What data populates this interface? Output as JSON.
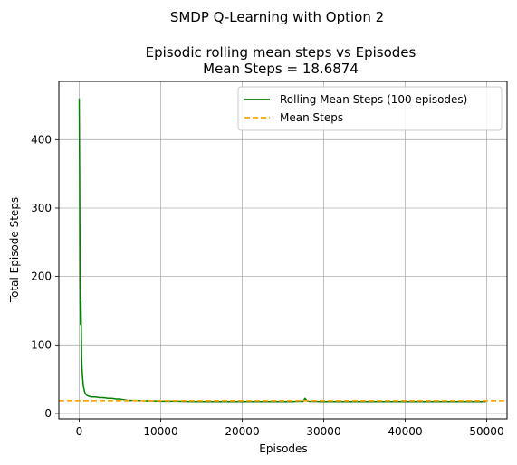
{
  "chart_data": {
    "type": "line",
    "suptitle": "SMDP Q-Learning with Option 2",
    "title": "Episodic rolling mean steps vs Episodes",
    "subtitle": "Mean Steps = 18.6874",
    "xlabel": "Episodes",
    "ylabel": "Total Episode Steps",
    "xlim": [
      -2500,
      52500
    ],
    "ylim": [
      -8,
      485
    ],
    "xticks": [
      0,
      10000,
      20000,
      30000,
      40000,
      50000
    ],
    "xtick_labels": [
      "0",
      "10000",
      "20000",
      "30000",
      "40000",
      "50000"
    ],
    "yticks": [
      0,
      100,
      200,
      300,
      400
    ],
    "ytick_labels": [
      "0",
      "100",
      "200",
      "300",
      "400"
    ],
    "grid": true,
    "legend_position": "top-right",
    "series": [
      {
        "name": "Rolling Mean Steps (100 episodes)",
        "color": "#008000",
        "style": "solid",
        "x": [
          0,
          50,
          100,
          150,
          200,
          250,
          300,
          350,
          400,
          450,
          500,
          600,
          700,
          800,
          900,
          1000,
          1200,
          1500,
          2000,
          2500,
          3000,
          3500,
          4000,
          4500,
          5000,
          5500,
          6000,
          7000,
          8000,
          9000,
          10000,
          12000,
          14000,
          16000,
          18000,
          20000,
          22000,
          24000,
          26000,
          27500,
          27700,
          28000,
          30000,
          32000,
          34000,
          36000,
          38000,
          40000,
          42000,
          44000,
          46000,
          48000,
          49900
        ],
        "y": [
          460,
          350,
          200,
          130,
          168,
          130,
          80,
          65,
          55,
          48,
          40,
          35,
          30,
          28,
          27,
          26,
          25,
          24,
          24,
          23,
          23,
          22,
          22,
          21,
          21,
          20,
          19,
          19,
          18.5,
          18.5,
          18,
          18,
          17.5,
          17.5,
          17.5,
          17.5,
          17.5,
          17.5,
          17.5,
          18,
          22,
          18,
          17.5,
          17.5,
          17.5,
          17.5,
          17.5,
          17.5,
          17.5,
          17.5,
          17.5,
          17.5,
          17.5
        ]
      },
      {
        "name": "Mean Steps",
        "color": "#FFA500",
        "style": "dashed",
        "y_constant": 18.6874
      }
    ]
  }
}
